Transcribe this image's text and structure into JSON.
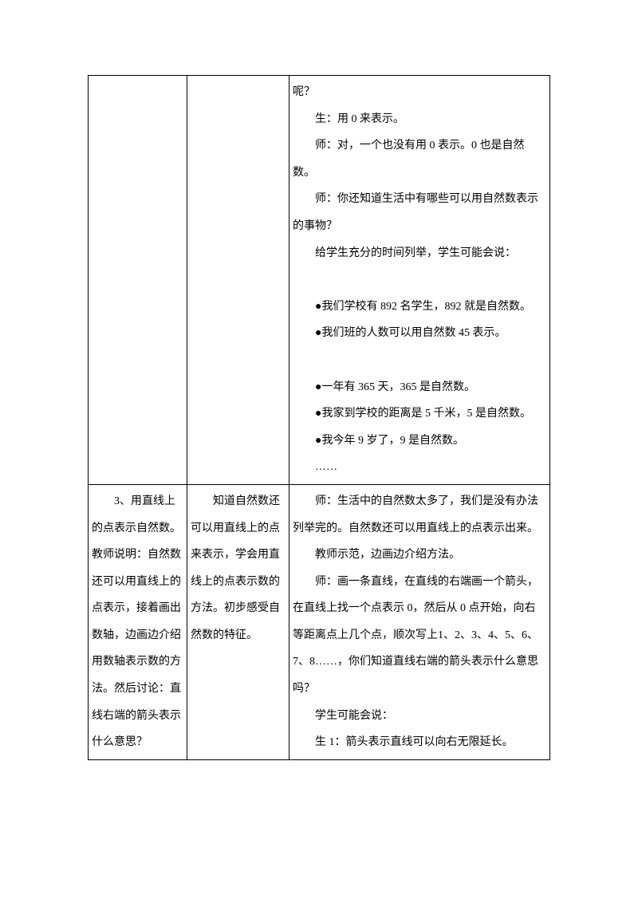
{
  "table": {
    "columns": {
      "col1_width": 124,
      "col2_width": 128
    },
    "rows": [
      {
        "col1": [],
        "col2": [],
        "col3": [
          "呢？",
          "生：用 0 来表示。",
          "师：对，一个也没有用 0 表示。0 也是自然数。",
          "师：你还知道生活中有哪些可以用自然数表示的事物？",
          "给学生充分的时间列举，学生可能会说：",
          "",
          "●我们学校有 892 名学生，892 就是自然数。",
          "●我们班的人数可以用自然数 45 表示。",
          "",
          "●一年有 365 天，365 是自然数。",
          "●我家到学校的距离是 5 千米，5 是自然数。",
          "●我今年 9 岁了，9 是自然数。",
          "……"
        ]
      },
      {
        "col1": [
          "3、用直线上的点表示自然数。教师说明：自然数还可以用直线上的点表示，接着画出数轴，边画边介绍用数轴表示数的方法。然后讨论：直线右端的箭头表示什么意思？"
        ],
        "col2": [
          "知道自然数还可以用直线上的点来表示，学会用直线上的点表示数的方法。初步感受自然数的特征。"
        ],
        "col3": [
          "师：生活中的自然数太多了，我们是没有办法列举完的。自然数还可以用直线上的点表示出来。",
          "教师示范，边画边介绍方法。",
          "师：画一条直线，在直线的右端画一个箭头，在直线上找一个点表示 0，然后从 0 点开始，向右等距离点上几个点，顺次写上1、2、3、4、5、6、7、8……，你们知道直线右端的箭头表示什么意思吗？",
          "学生可能会说：",
          "生 1：箭头表示直线可以向右无限延长。"
        ]
      }
    ]
  },
  "styles": {
    "background_color": "#ffffff",
    "text_color": "#000000",
    "border_color": "#000000",
    "font_size": 14,
    "line_height": 2.4
  }
}
